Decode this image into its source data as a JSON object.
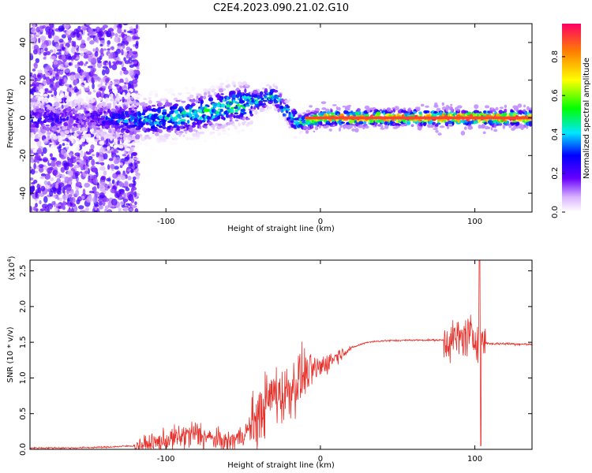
{
  "figure_title": "C2E4.2023.090.21.02.G10",
  "chart_data": [
    {
      "type": "heatmap",
      "xlabel": "Height of straight line (km)",
      "ylabel": "Frequency (Hz)",
      "xlim": [
        -188,
        137
      ],
      "ylim": [
        -50,
        50
      ],
      "x_ticks": [
        -100,
        0,
        100
      ],
      "x_tick_labels": [
        "-100",
        "0",
        "100"
      ],
      "y_ticks": [
        -40,
        -20,
        0,
        20,
        40
      ],
      "y_tick_labels": [
        "-40",
        "-20",
        "0",
        "20",
        "40"
      ],
      "grid": false,
      "colorbar": {
        "label": "Normalized spectral amplitude",
        "range": [
          0,
          0.97
        ],
        "ticks": [
          0.0,
          0.2,
          0.4,
          0.6,
          0.8
        ],
        "tick_labels": [
          "0.0",
          "0.2",
          "0.4",
          "0.6",
          "0.8"
        ]
      },
      "ridge": {
        "description_points_x": [
          -175,
          -150,
          -120,
          -100,
          -80,
          -60,
          -45,
          -30,
          -15,
          0,
          20,
          50,
          80,
          100,
          137
        ],
        "frequency_hz": [
          -1,
          0,
          -1,
          0,
          2,
          6,
          8,
          12,
          -3,
          0,
          0,
          0,
          0,
          0,
          0
        ],
        "peak_amplitude": [
          0.25,
          0.2,
          0.4,
          0.45,
          0.5,
          0.55,
          0.5,
          0.45,
          0.5,
          0.85,
          0.95,
          0.95,
          0.95,
          0.95,
          0.9
        ]
      }
    },
    {
      "type": "line",
      "xlabel": "Height of straight line (km)",
      "ylabel": "SNR (10 * v/v)",
      "y_multiplier_label": "(x10",
      "y_multiplier_exponent": "4",
      "xlim": [
        -188,
        137
      ],
      "ylim": [
        0,
        2.65
      ],
      "x_ticks": [
        -100,
        0,
        100
      ],
      "x_tick_labels": [
        "-100",
        "0",
        "100"
      ],
      "y_ticks": [
        0.0,
        0.5,
        1.0,
        1.5,
        2.0,
        2.5
      ],
      "y_tick_labels": [
        "0.0",
        "0.5",
        "1.0",
        "1.5",
        "2.0",
        "2.5"
      ],
      "grid": false,
      "series": [
        {
          "color": "#e8302a",
          "x": [
            -188,
            -160,
            -140,
            -120,
            -110,
            -100,
            -90,
            -80,
            -70,
            -60,
            -50,
            -40,
            -35,
            -30,
            -25,
            -20,
            -15,
            -10,
            -5,
            0,
            10,
            20,
            30,
            40,
            60,
            80,
            85,
            90,
            95,
            100,
            103,
            105,
            110,
            120,
            137
          ],
          "y": [
            0.02,
            0.02,
            0.03,
            0.05,
            0.08,
            0.12,
            0.18,
            0.22,
            0.15,
            0.1,
            0.2,
            0.45,
            0.65,
            0.8,
            0.75,
            0.85,
            0.95,
            1.05,
            1.1,
            1.15,
            1.3,
            1.42,
            1.5,
            1.52,
            1.53,
            1.53,
            1.53,
            1.55,
            1.6,
            1.55,
            1.6,
            1.5,
            1.48,
            1.48,
            1.47
          ]
        }
      ]
    }
  ]
}
